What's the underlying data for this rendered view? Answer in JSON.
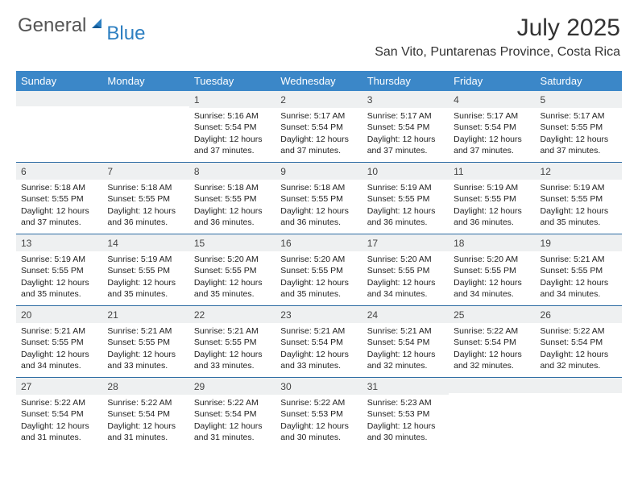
{
  "logo": {
    "general": "General",
    "blue": "Blue"
  },
  "title": "July 2025",
  "location": "San Vito, Puntarenas Province, Costa Rica",
  "colors": {
    "header_bg": "#3b87c8",
    "week_border": "#2d6ca3",
    "daynum_bg": "#eef0f1",
    "logo_gray": "#555555",
    "logo_blue": "#2d7fc1"
  },
  "day_names": [
    "Sunday",
    "Monday",
    "Tuesday",
    "Wednesday",
    "Thursday",
    "Friday",
    "Saturday"
  ],
  "weeks": [
    [
      null,
      null,
      {
        "n": "1",
        "sunrise": "5:16 AM",
        "sunset": "5:54 PM",
        "daylight": "12 hours and 37 minutes."
      },
      {
        "n": "2",
        "sunrise": "5:17 AM",
        "sunset": "5:54 PM",
        "daylight": "12 hours and 37 minutes."
      },
      {
        "n": "3",
        "sunrise": "5:17 AM",
        "sunset": "5:54 PM",
        "daylight": "12 hours and 37 minutes."
      },
      {
        "n": "4",
        "sunrise": "5:17 AM",
        "sunset": "5:54 PM",
        "daylight": "12 hours and 37 minutes."
      },
      {
        "n": "5",
        "sunrise": "5:17 AM",
        "sunset": "5:55 PM",
        "daylight": "12 hours and 37 minutes."
      }
    ],
    [
      {
        "n": "6",
        "sunrise": "5:18 AM",
        "sunset": "5:55 PM",
        "daylight": "12 hours and 37 minutes."
      },
      {
        "n": "7",
        "sunrise": "5:18 AM",
        "sunset": "5:55 PM",
        "daylight": "12 hours and 36 minutes."
      },
      {
        "n": "8",
        "sunrise": "5:18 AM",
        "sunset": "5:55 PM",
        "daylight": "12 hours and 36 minutes."
      },
      {
        "n": "9",
        "sunrise": "5:18 AM",
        "sunset": "5:55 PM",
        "daylight": "12 hours and 36 minutes."
      },
      {
        "n": "10",
        "sunrise": "5:19 AM",
        "sunset": "5:55 PM",
        "daylight": "12 hours and 36 minutes."
      },
      {
        "n": "11",
        "sunrise": "5:19 AM",
        "sunset": "5:55 PM",
        "daylight": "12 hours and 36 minutes."
      },
      {
        "n": "12",
        "sunrise": "5:19 AM",
        "sunset": "5:55 PM",
        "daylight": "12 hours and 35 minutes."
      }
    ],
    [
      {
        "n": "13",
        "sunrise": "5:19 AM",
        "sunset": "5:55 PM",
        "daylight": "12 hours and 35 minutes."
      },
      {
        "n": "14",
        "sunrise": "5:19 AM",
        "sunset": "5:55 PM",
        "daylight": "12 hours and 35 minutes."
      },
      {
        "n": "15",
        "sunrise": "5:20 AM",
        "sunset": "5:55 PM",
        "daylight": "12 hours and 35 minutes."
      },
      {
        "n": "16",
        "sunrise": "5:20 AM",
        "sunset": "5:55 PM",
        "daylight": "12 hours and 35 minutes."
      },
      {
        "n": "17",
        "sunrise": "5:20 AM",
        "sunset": "5:55 PM",
        "daylight": "12 hours and 34 minutes."
      },
      {
        "n": "18",
        "sunrise": "5:20 AM",
        "sunset": "5:55 PM",
        "daylight": "12 hours and 34 minutes."
      },
      {
        "n": "19",
        "sunrise": "5:21 AM",
        "sunset": "5:55 PM",
        "daylight": "12 hours and 34 minutes."
      }
    ],
    [
      {
        "n": "20",
        "sunrise": "5:21 AM",
        "sunset": "5:55 PM",
        "daylight": "12 hours and 34 minutes."
      },
      {
        "n": "21",
        "sunrise": "5:21 AM",
        "sunset": "5:55 PM",
        "daylight": "12 hours and 33 minutes."
      },
      {
        "n": "22",
        "sunrise": "5:21 AM",
        "sunset": "5:55 PM",
        "daylight": "12 hours and 33 minutes."
      },
      {
        "n": "23",
        "sunrise": "5:21 AM",
        "sunset": "5:54 PM",
        "daylight": "12 hours and 33 minutes."
      },
      {
        "n": "24",
        "sunrise": "5:21 AM",
        "sunset": "5:54 PM",
        "daylight": "12 hours and 32 minutes."
      },
      {
        "n": "25",
        "sunrise": "5:22 AM",
        "sunset": "5:54 PM",
        "daylight": "12 hours and 32 minutes."
      },
      {
        "n": "26",
        "sunrise": "5:22 AM",
        "sunset": "5:54 PM",
        "daylight": "12 hours and 32 minutes."
      }
    ],
    [
      {
        "n": "27",
        "sunrise": "5:22 AM",
        "sunset": "5:54 PM",
        "daylight": "12 hours and 31 minutes."
      },
      {
        "n": "28",
        "sunrise": "5:22 AM",
        "sunset": "5:54 PM",
        "daylight": "12 hours and 31 minutes."
      },
      {
        "n": "29",
        "sunrise": "5:22 AM",
        "sunset": "5:54 PM",
        "daylight": "12 hours and 31 minutes."
      },
      {
        "n": "30",
        "sunrise": "5:22 AM",
        "sunset": "5:53 PM",
        "daylight": "12 hours and 30 minutes."
      },
      {
        "n": "31",
        "sunrise": "5:23 AM",
        "sunset": "5:53 PM",
        "daylight": "12 hours and 30 minutes."
      },
      null,
      null
    ]
  ],
  "labels": {
    "sunrise": "Sunrise:",
    "sunset": "Sunset:",
    "daylight": "Daylight:"
  },
  "typography": {
    "title_fontsize": 30,
    "location_fontsize": 16,
    "header_fontsize": 13,
    "cell_fontsize": 10.5
  }
}
